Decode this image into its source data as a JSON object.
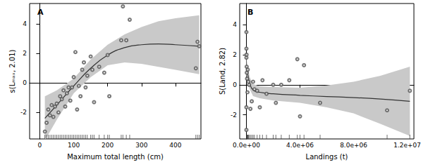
{
  "chart_data": [
    {
      "type": "scatter",
      "title": "A",
      "x_label": "Maximum total length (cm)",
      "y_label": "s(Lₘₐₓ, 2.01)",
      "xlim": [
        -30,
        475
      ],
      "ylim": [
        -3.8,
        5.4
      ],
      "xticks": [
        0,
        100,
        200,
        300,
        400
      ],
      "yticks": [
        -2,
        0,
        2,
        4
      ],
      "points": {
        "x": [
          15,
          20,
          25,
          30,
          35,
          40,
          45,
          50,
          55,
          60,
          65,
          70,
          75,
          80,
          85,
          90,
          95,
          100,
          105,
          110,
          115,
          120,
          125,
          130,
          135,
          140,
          150,
          155,
          160,
          175,
          190,
          200,
          205,
          240,
          245,
          255,
          265,
          460,
          465,
          470
        ],
        "y": [
          -3.3,
          -2.7,
          -1.8,
          -2.2,
          -1.5,
          -2.3,
          -1.6,
          -1.4,
          -2.0,
          -0.9,
          -1.1,
          -0.5,
          -1.6,
          -0.7,
          -0.3,
          -1.2,
          -0.3,
          0.4,
          2.1,
          -1.8,
          -0.2,
          -0.9,
          0.9,
          1.4,
          -0.3,
          0.5,
          1.8,
          0.9,
          -1.3,
          1.1,
          0.7,
          1.9,
          -0.9,
          2.9,
          5.2,
          2.9,
          4.3,
          1.0,
          2.8,
          2.5
        ]
      },
      "fit": {
        "x": [
          15,
          50,
          100,
          150,
          200,
          250,
          300,
          350,
          400,
          470
        ],
        "y": [
          -2.4,
          -1.5,
          -0.2,
          1.0,
          1.9,
          2.4,
          2.6,
          2.65,
          2.6,
          2.5
        ],
        "lower": [
          -3.9,
          -2.5,
          -0.7,
          0.4,
          1.2,
          1.4,
          1.3,
          1.1,
          0.9,
          0.6
        ],
        "upper": [
          -0.9,
          -0.5,
          0.3,
          1.6,
          2.6,
          3.3,
          3.8,
          4.2,
          4.4,
          4.6
        ]
      },
      "rug": [
        15,
        20,
        25,
        30,
        35,
        40,
        45,
        50,
        55,
        60,
        65,
        70,
        75,
        80,
        85,
        90,
        95,
        100,
        105,
        110,
        115,
        120,
        125,
        130,
        135,
        140,
        150,
        155,
        160,
        175,
        190,
        200,
        205,
        240,
        245,
        255,
        265,
        460,
        465,
        470
      ]
    },
    {
      "type": "scatter",
      "title": "B",
      "x_label": "Landings (t)",
      "y_label": "S(Land, 2.82)",
      "xlim": [
        -500000,
        12500000
      ],
      "ylim": [
        -3.6,
        5.4
      ],
      "xticks": [
        {
          "value": 0,
          "label": "0.0e+00"
        },
        {
          "value": 4000000,
          "label": "4.0e+06"
        },
        {
          "value": 8000000,
          "label": "8.0e+06"
        },
        {
          "value": 12000000,
          "label": "1.2e+07"
        }
      ],
      "yticks": [
        -2,
        0,
        2,
        4
      ],
      "points": {
        "x": [
          0,
          0,
          0,
          0,
          0,
          10000,
          20000,
          30000,
          50000,
          80000,
          100000,
          150000,
          200000,
          300000,
          400000,
          500000,
          600000,
          800000,
          1000000,
          1200000,
          1500000,
          2000000,
          2200000,
          2600000,
          3200000,
          3800000,
          4000000,
          4300000,
          5500000,
          10500000,
          12200000
        ],
        "y": [
          2.4,
          1.8,
          3.5,
          -3.0,
          -1.5,
          2.0,
          1.2,
          0.8,
          0.4,
          -0.5,
          1.0,
          0.2,
          0.0,
          -1.6,
          -1.1,
          0.2,
          -0.3,
          -0.4,
          -1.5,
          0.3,
          -0.6,
          0.0,
          -1.2,
          0.0,
          0.3,
          1.7,
          -2.1,
          1.3,
          -1.2,
          -1.7,
          -0.4
        ]
      },
      "fit": {
        "x": [
          0,
          100000,
          250000,
          500000,
          1000000,
          2000000,
          4000000,
          6000000,
          8000000,
          10000000,
          12200000
        ],
        "y": [
          1.2,
          0.7,
          0.1,
          -0.35,
          -0.5,
          -0.6,
          -0.7,
          -0.78,
          -0.85,
          -0.95,
          -1.1
        ],
        "lower": [
          0.6,
          0.2,
          -0.3,
          -0.75,
          -0.9,
          -1.05,
          -1.2,
          -1.5,
          -1.9,
          -2.6,
          -3.4
        ],
        "upper": [
          1.8,
          1.2,
          0.5,
          0.05,
          -0.1,
          -0.15,
          -0.2,
          -0.05,
          0.2,
          0.6,
          1.2
        ]
      },
      "rug": [
        0,
        10000,
        20000,
        30000,
        50000,
        80000,
        100000,
        150000,
        200000,
        300000,
        400000,
        500000,
        600000,
        800000,
        1000000,
        1200000,
        1500000,
        2000000,
        2200000,
        2600000,
        3200000,
        3800000,
        4000000,
        4300000,
        5500000,
        10500000,
        12200000
      ]
    }
  ]
}
